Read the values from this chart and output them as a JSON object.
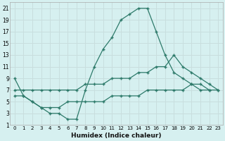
{
  "xlabel": "Humidex (Indice chaleur)",
  "bg_color": "#d6f0f0",
  "grid_color": "#c8dede",
  "line_color": "#2d7a6a",
  "line1_x": [
    0,
    1,
    2,
    3,
    4,
    5,
    6,
    7,
    8,
    9,
    10,
    11,
    12,
    13,
    14,
    15,
    16,
    17,
    18,
    19,
    20,
    21,
    22,
    23
  ],
  "line1_y": [
    9,
    6,
    5,
    4,
    3,
    3,
    2,
    2,
    7,
    11,
    14,
    16,
    19,
    20,
    21,
    21,
    17,
    13,
    10,
    9,
    8,
    7,
    7,
    null
  ],
  "line1_has_null": true,
  "line2_x": [
    0,
    1,
    2,
    3,
    4,
    5,
    6,
    7,
    8,
    9,
    10,
    11,
    12,
    13,
    14,
    15,
    16,
    17,
    18,
    19,
    20,
    21,
    22,
    23
  ],
  "line2_y": [
    7,
    7,
    7,
    7,
    7,
    7,
    7,
    7,
    8,
    8,
    8,
    9,
    9,
    9,
    10,
    10,
    11,
    11,
    13,
    11,
    10,
    9,
    8,
    7
  ],
  "line3_x": [
    0,
    1,
    2,
    3,
    4,
    5,
    6,
    7,
    8,
    9,
    10,
    11,
    12,
    13,
    14,
    15,
    16,
    17,
    18,
    19,
    20,
    21,
    22,
    23
  ],
  "line3_y": [
    6,
    6,
    5,
    4,
    4,
    4,
    5,
    5,
    5,
    5,
    5,
    6,
    6,
    6,
    6,
    7,
    7,
    7,
    7,
    7,
    8,
    8,
    7,
    7
  ],
  "xlim": [
    -0.5,
    23.5
  ],
  "ylim": [
    1,
    22
  ],
  "xticks": [
    0,
    1,
    2,
    3,
    4,
    5,
    6,
    7,
    8,
    9,
    10,
    11,
    12,
    13,
    14,
    15,
    16,
    17,
    18,
    19,
    20,
    21,
    22,
    23
  ],
  "yticks": [
    1,
    3,
    5,
    7,
    9,
    11,
    13,
    15,
    17,
    19,
    21
  ]
}
